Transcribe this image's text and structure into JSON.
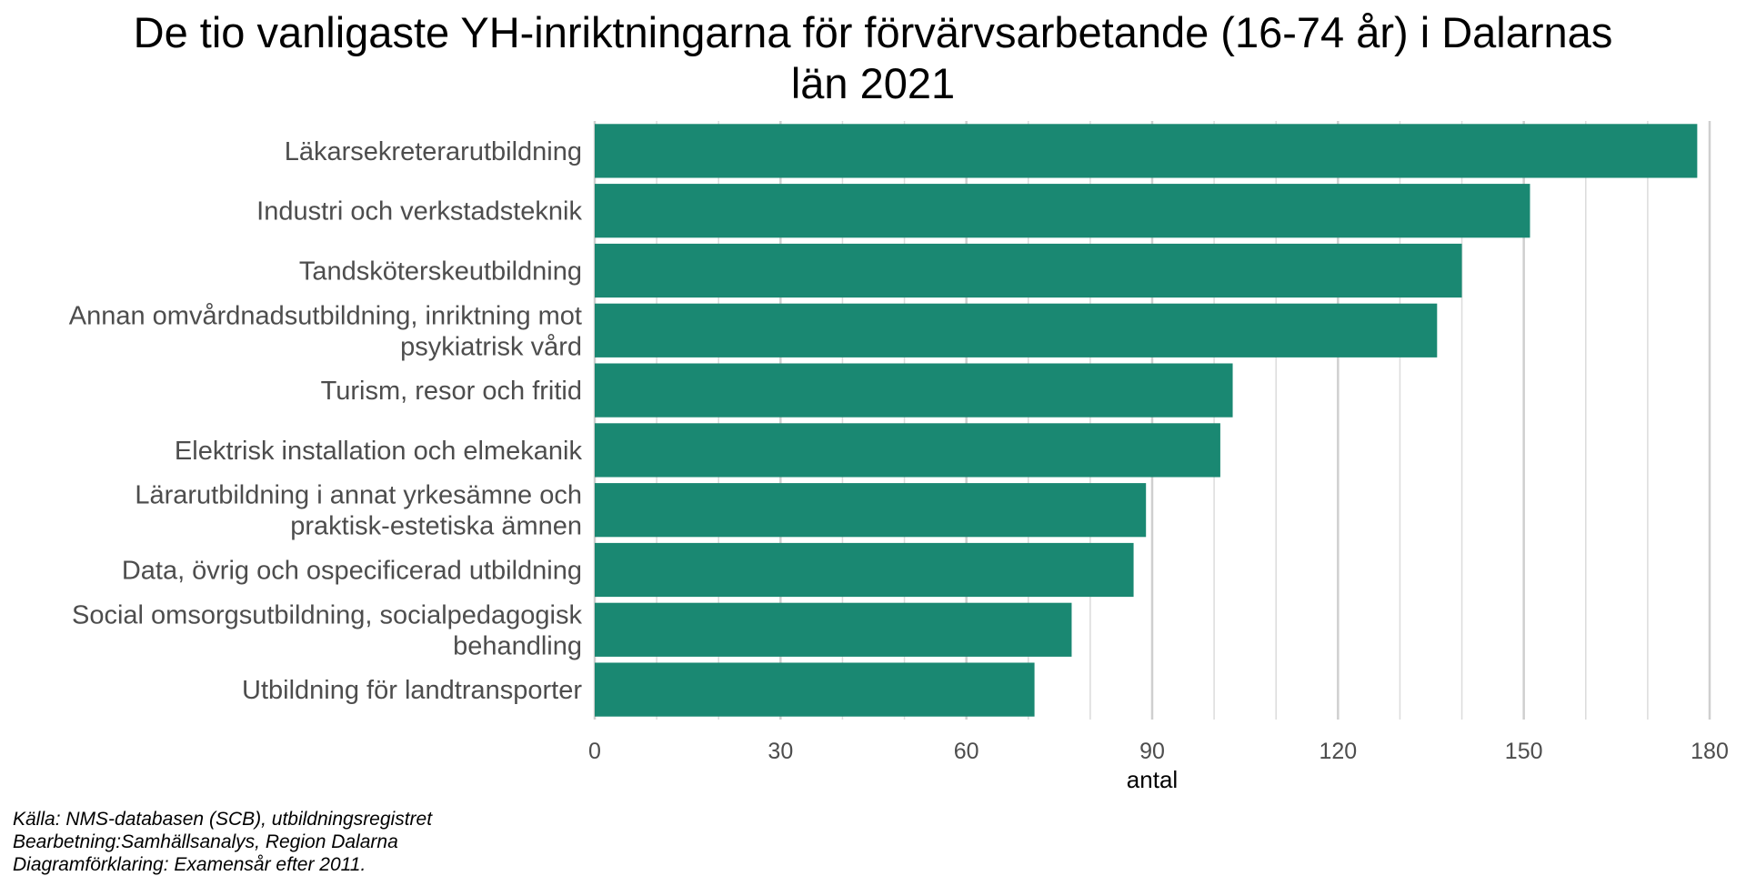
{
  "chart_data": {
    "type": "bar",
    "orientation": "horizontal",
    "title": "De tio vanligaste YH-inriktningarna för förvärvsarbetande (16-74 år) i Dalarnas län 2021",
    "title_lines": [
      "De tio vanligaste YH-inriktningarna för förvärvsarbetande (16-74 år) i Dalarnas",
      "län 2021"
    ],
    "xlabel": "antal",
    "ylabel": "",
    "xlim": [
      0,
      180
    ],
    "xticks": [
      0,
      30,
      60,
      90,
      120,
      150,
      180
    ],
    "xtick_labels": [
      "0",
      "30",
      "60",
      "90",
      "120",
      "150",
      "180"
    ],
    "grid": true,
    "bar_color": "#1a8872",
    "categories": [
      [
        "Läkarsekreterarutbildning"
      ],
      [
        "Industri och verkstadsteknik"
      ],
      [
        "Tandsköterskeutbildning"
      ],
      [
        "Annan omvårdnadsutbildning, inriktning mot",
        "psykiatrisk vård"
      ],
      [
        "Turism, resor och fritid"
      ],
      [
        "Elektrisk installation och elmekanik"
      ],
      [
        "Lärarutbildning i annat yrkesämne och",
        "praktisk-estetiska ämnen"
      ],
      [
        "Data, övrig och ospecificerad utbildning"
      ],
      [
        "Social omsorgsutbildning, socialpedagogisk",
        "behandling"
      ],
      [
        "Utbildning för landtransporter"
      ]
    ],
    "values": [
      178,
      151,
      140,
      136,
      103,
      101,
      89,
      87,
      77,
      71
    ]
  },
  "footnotes": {
    "source": "Källa: NMS-databasen (SCB), utbildningsregistret",
    "processing": "Bearbetning:Samhällsanalys, Region Dalarna",
    "explanation": "Diagramförklaring: Examensår efter 2011."
  }
}
